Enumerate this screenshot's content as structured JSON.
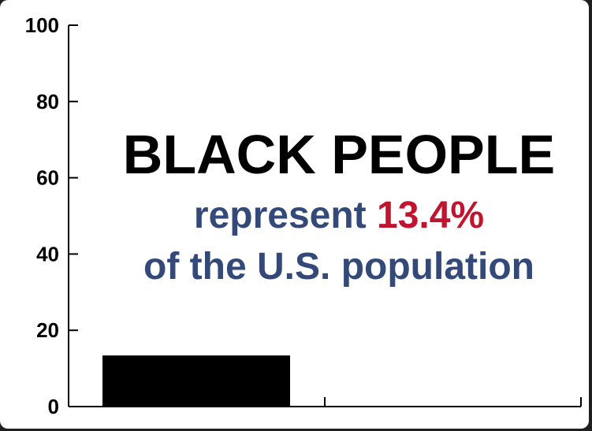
{
  "chart_data": {
    "type": "bar",
    "categories": [
      ""
    ],
    "values": [
      13.4
    ],
    "ylim": [
      0,
      100
    ],
    "yticks": [
      "0",
      "20",
      "40",
      "60",
      "80",
      "100"
    ],
    "bar_color": "#000000",
    "annotation": {
      "line1": "BLACK PEOPLE",
      "line2_prefix": "represent ",
      "line2_value": "13.4%",
      "line3": "of the U.S. population"
    },
    "colors": {
      "headline": "#000000",
      "subtext": "#33497a",
      "highlight": "#c0152f"
    }
  }
}
